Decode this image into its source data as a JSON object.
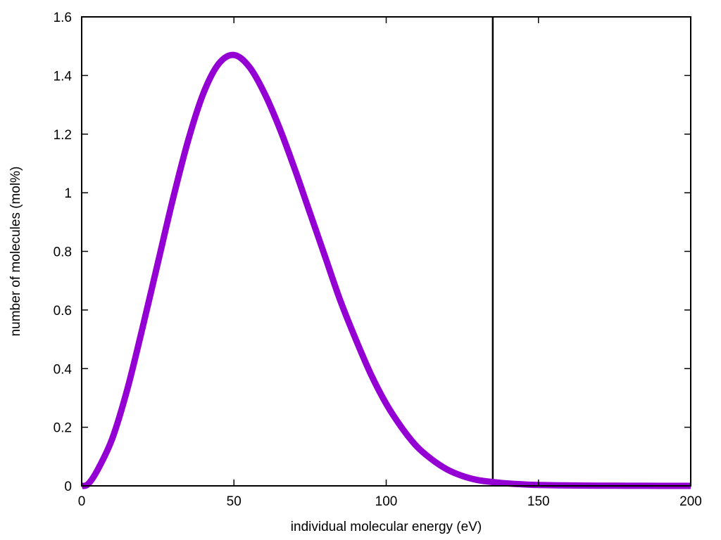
{
  "chart_data": {
    "type": "line",
    "title": "",
    "xlabel": "individual molecular energy (eV)",
    "ylabel": "number of molecules (mol%)",
    "xlim": [
      0,
      200
    ],
    "ylim": [
      0,
      1.6
    ],
    "x_ticks": [
      0,
      50,
      100,
      150,
      200
    ],
    "x_tick_labels": [
      "0",
      "50",
      "100",
      "150",
      "200"
    ],
    "y_ticks": [
      0,
      0.2,
      0.4,
      0.6,
      0.8,
      1,
      1.2,
      1.4,
      1.6
    ],
    "y_tick_labels": [
      "0",
      "0.2",
      "0.4",
      "0.6",
      "0.8",
      "1",
      "1.2",
      "1.4",
      "1.6"
    ],
    "grid": false,
    "legend": "none",
    "series": [
      {
        "color": "#9400d3",
        "x": [
          0,
          2,
          5,
          10,
          15,
          20,
          25,
          30,
          35,
          40,
          45,
          50,
          55,
          60,
          65,
          70,
          75,
          80,
          85,
          90,
          95,
          100,
          105,
          110,
          115,
          120,
          125,
          130,
          135,
          140,
          145,
          150,
          160,
          170,
          180,
          190,
          200
        ],
        "y": [
          0,
          0.005,
          0.05,
          0.16,
          0.33,
          0.54,
          0.76,
          0.98,
          1.18,
          1.34,
          1.44,
          1.47,
          1.43,
          1.34,
          1.22,
          1.08,
          0.93,
          0.78,
          0.63,
          0.5,
          0.38,
          0.28,
          0.2,
          0.135,
          0.09,
          0.056,
          0.034,
          0.02,
          0.013,
          0.008,
          0.005,
          0.003,
          0.0015,
          0.0007,
          0.0003,
          0.0001,
          0
        ]
      }
    ],
    "vlines": [
      {
        "x": 135,
        "color": "#000000"
      }
    ]
  }
}
